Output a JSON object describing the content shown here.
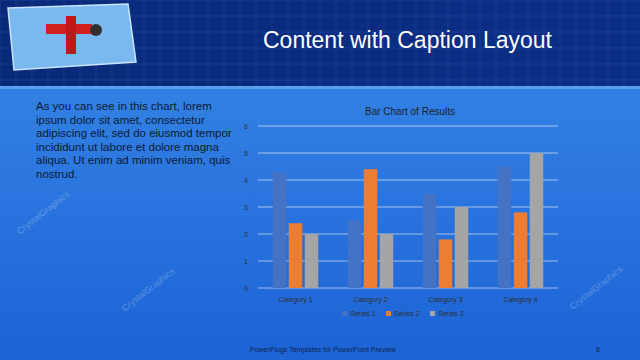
{
  "slide": {
    "title": "Content with Caption Layout",
    "caption": "As you can see in this chart, lorem ipsum dolor sit amet, consectetur adipiscing elit, sed do eiusmod tempor incididunt ut labore et dolore magna aliqua. Ut enim ad minim veniam, quis nostrud.",
    "footer": "PowerPlugs Templates for PowerPoint Preview",
    "page_number": 8,
    "watermark": "CrystalGraphics"
  },
  "chart_data": {
    "type": "bar",
    "title": "Bar Chart of Results",
    "categories": [
      "Category 1",
      "Category 2",
      "Category 3",
      "Category 4"
    ],
    "series": [
      {
        "name": "Series 1",
        "color": "#4472c4",
        "values": [
          4.3,
          2.5,
          3.5,
          4.5
        ]
      },
      {
        "name": "Series 2",
        "color": "#ed7d31",
        "values": [
          2.4,
          4.4,
          1.8,
          2.8
        ]
      },
      {
        "name": "Series 3",
        "color": "#a5a5a5",
        "values": [
          2,
          2,
          3,
          5
        ]
      }
    ],
    "ylim": [
      0,
      6
    ],
    "yticks": [
      0,
      1,
      2,
      3,
      4,
      5,
      6
    ],
    "grid": true,
    "legend": "bottom"
  }
}
